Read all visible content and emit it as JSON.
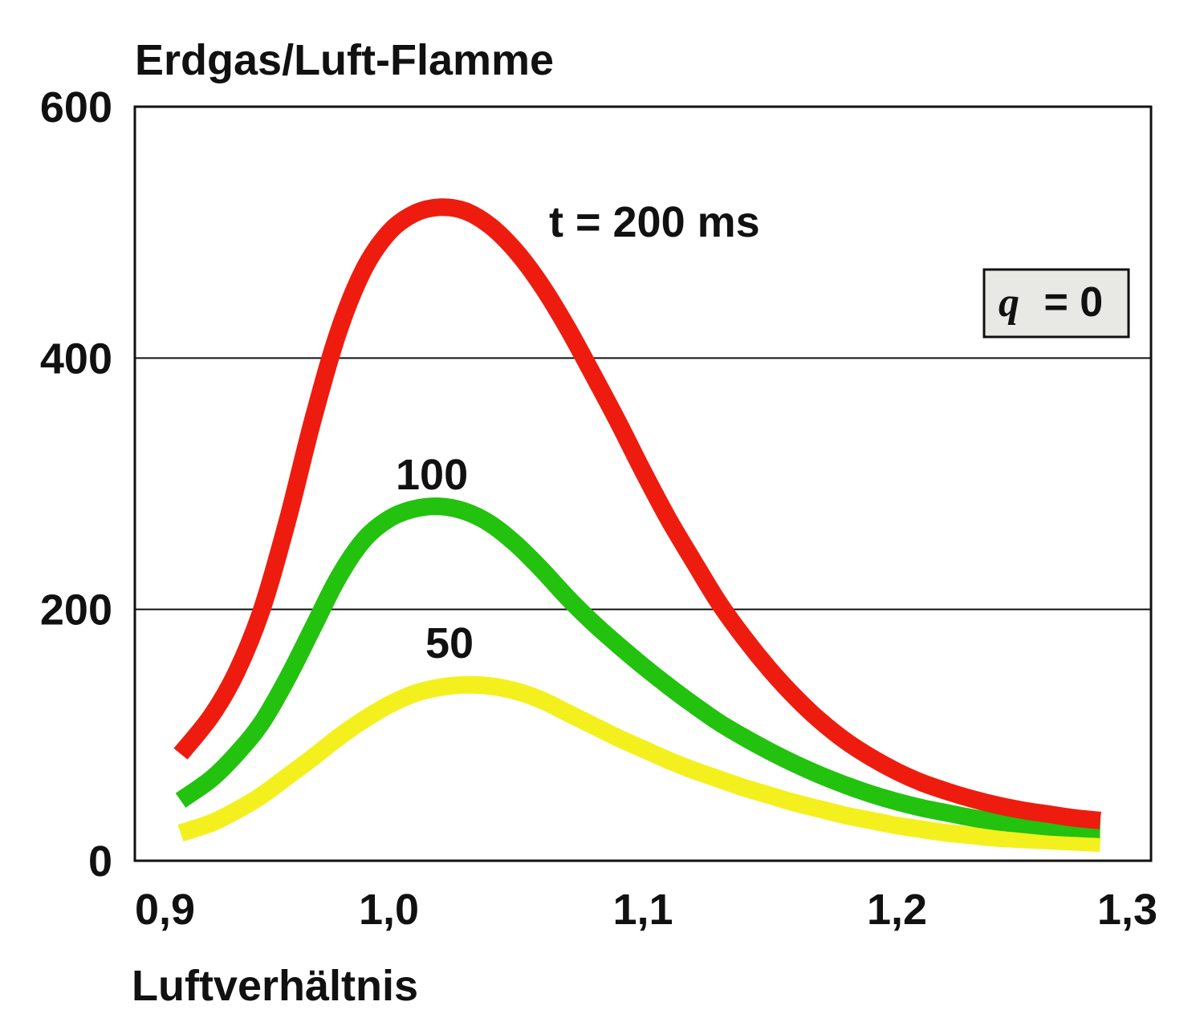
{
  "chart_data": {
    "type": "line",
    "title": "Erdgas/Luft-Flamme",
    "xlabel": "Luftverhältnis",
    "ylabel": "",
    "xlim": [
      0.9,
      1.3
    ],
    "ylim": [
      0,
      600
    ],
    "x_ticks": [
      "0,9",
      "1,0",
      "1,1",
      "1,2",
      "1,3"
    ],
    "y_ticks": [
      "0",
      "200",
      "400",
      "600"
    ],
    "grid": "horizontal lines at 200 and 400",
    "annotation": {
      "var": "q",
      "rest": "= 0"
    },
    "series": [
      {
        "name": "t = 200 ms",
        "color": "#ee1c0f",
        "x": [
          0.918,
          0.93,
          0.94,
          0.95,
          0.96,
          0.97,
          0.98,
          0.99,
          1.0,
          1.01,
          1.02,
          1.03,
          1.04,
          1.05,
          1.06,
          1.07,
          1.08,
          1.09,
          1.1,
          1.11,
          1.12,
          1.13,
          1.14,
          1.15,
          1.16,
          1.17,
          1.18,
          1.19,
          1.2,
          1.21,
          1.22,
          1.23,
          1.24,
          1.25,
          1.26,
          1.27,
          1.28
        ],
        "values": [
          85,
          115,
          150,
          200,
          270,
          350,
          420,
          470,
          500,
          515,
          520,
          517,
          505,
          485,
          458,
          425,
          388,
          350,
          310,
          272,
          238,
          205,
          177,
          152,
          130,
          111,
          95,
          82,
          71,
          62,
          55,
          49,
          44,
          40,
          37,
          34,
          32
        ]
      },
      {
        "name": "100",
        "color": "#22c20e",
        "x": [
          0.918,
          0.93,
          0.94,
          0.95,
          0.96,
          0.97,
          0.98,
          0.99,
          1.0,
          1.01,
          1.02,
          1.03,
          1.04,
          1.05,
          1.06,
          1.07,
          1.08,
          1.09,
          1.1,
          1.11,
          1.12,
          1.13,
          1.14,
          1.15,
          1.16,
          1.17,
          1.18,
          1.19,
          1.2,
          1.21,
          1.22,
          1.23,
          1.24,
          1.25,
          1.26,
          1.27,
          1.28
        ],
        "values": [
          48,
          65,
          85,
          110,
          145,
          185,
          225,
          255,
          272,
          280,
          282,
          278,
          268,
          252,
          232,
          210,
          190,
          172,
          155,
          139,
          124,
          110,
          98,
          87,
          77,
          68,
          60,
          53,
          47,
          42,
          38,
          34,
          31,
          29,
          27,
          26,
          25
        ]
      },
      {
        "name": "50",
        "color": "#f4f01e",
        "x": [
          0.918,
          0.93,
          0.94,
          0.95,
          0.96,
          0.97,
          0.98,
          0.99,
          1.0,
          1.01,
          1.02,
          1.03,
          1.04,
          1.05,
          1.06,
          1.07,
          1.08,
          1.09,
          1.1,
          1.11,
          1.12,
          1.13,
          1.14,
          1.15,
          1.16,
          1.17,
          1.18,
          1.19,
          1.2,
          1.21,
          1.22,
          1.23,
          1.24,
          1.25,
          1.26,
          1.27,
          1.28
        ],
        "values": [
          22,
          30,
          40,
          52,
          67,
          82,
          98,
          112,
          124,
          133,
          138,
          140,
          139,
          135,
          128,
          118,
          108,
          98,
          89,
          80,
          72,
          65,
          58,
          52,
          46,
          41,
          36,
          32,
          28,
          25,
          22,
          20,
          18,
          17,
          16,
          15,
          14
        ]
      }
    ]
  }
}
